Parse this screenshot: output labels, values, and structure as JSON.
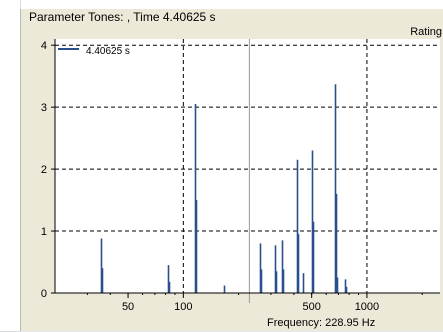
{
  "window": {
    "title": "Parameter Tones: , Time 4.40625 s",
    "rating_label": "Rating",
    "frequency_readout": "Frequency: 228.95 Hz"
  },
  "colors": {
    "series": "#2b4f8e",
    "cursor": "#999999",
    "grid": "#000000",
    "plot_bg": "#ffffff",
    "window_bg": "#ece9d8"
  },
  "chart_data": {
    "type": "bar",
    "x_scale": "log",
    "xlim": [
      20,
      2500
    ],
    "ylim": [
      0,
      4.1
    ],
    "x_ticks": [
      50,
      100,
      500,
      1000
    ],
    "x_tick_labels": [
      "50",
      "100",
      "500",
      "1000"
    ],
    "y_ticks": [
      0,
      1,
      2,
      3,
      4
    ],
    "y_tick_labels": [
      "0",
      "1",
      "2",
      "3",
      "4"
    ],
    "grid": true,
    "legend_position": "top-left",
    "cursor_frequency": 228.95,
    "series": [
      {
        "name": "4.40625 s",
        "points": [
          {
            "x": 35.5,
            "y": 0.88
          },
          {
            "x": 36.0,
            "y": 0.4
          },
          {
            "x": 82.5,
            "y": 0.45
          },
          {
            "x": 83.5,
            "y": 0.18
          },
          {
            "x": 116,
            "y": 3.05
          },
          {
            "x": 117,
            "y": 1.5
          },
          {
            "x": 166,
            "y": 0.12
          },
          {
            "x": 262,
            "y": 0.8
          },
          {
            "x": 266,
            "y": 0.38
          },
          {
            "x": 315,
            "y": 0.77
          },
          {
            "x": 319,
            "y": 0.35
          },
          {
            "x": 346,
            "y": 0.85
          },
          {
            "x": 350,
            "y": 0.38
          },
          {
            "x": 414,
            "y": 2.15
          },
          {
            "x": 419,
            "y": 0.95
          },
          {
            "x": 449,
            "y": 0.32
          },
          {
            "x": 504,
            "y": 2.3
          },
          {
            "x": 510,
            "y": 1.15
          },
          {
            "x": 670,
            "y": 3.37
          },
          {
            "x": 678,
            "y": 1.6
          },
          {
            "x": 688,
            "y": 0.25
          },
          {
            "x": 760,
            "y": 0.22
          },
          {
            "x": 770,
            "y": 0.1
          }
        ]
      }
    ]
  }
}
